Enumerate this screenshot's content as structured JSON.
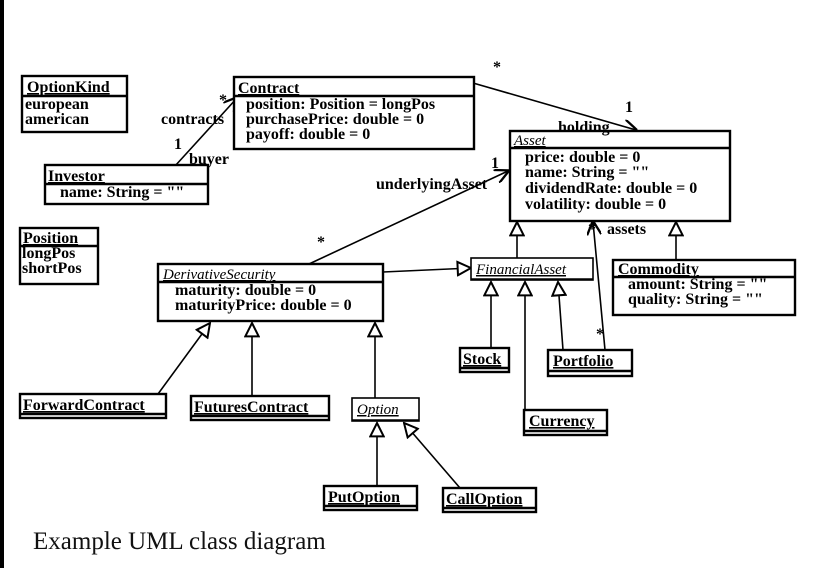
{
  "classes": {
    "option_kind": {
      "name": "OptionKind",
      "attrs": [
        "european",
        "american"
      ]
    },
    "contract": {
      "name": "Contract",
      "attrs": [
        "position: Position = longPos",
        "purchasePrice: double = 0",
        "payoff: double = 0"
      ]
    },
    "investor": {
      "name": "Investor",
      "attrs": [
        "name: String = \"\""
      ]
    },
    "asset": {
      "name": "Asset",
      "attrs": [
        "price: double = 0",
        "name: String = \"\"",
        "dividendRate: double = 0",
        "volatility: double = 0"
      ]
    },
    "position": {
      "name": "Position",
      "attrs": [
        "longPos",
        "shortPos"
      ]
    },
    "derivative_security": {
      "name": "DerivativeSecurity",
      "attrs": [
        "maturity: double = 0",
        "maturityPrice: double = 0"
      ]
    },
    "financial_asset": {
      "name": "FinancialAsset"
    },
    "commodity": {
      "name": "Commodity",
      "attrs": [
        "amount: String = \"\"",
        "quality: String = \"\""
      ]
    },
    "stock": {
      "name": "Stock"
    },
    "portfolio": {
      "name": "Portfolio"
    },
    "forward_contract": {
      "name": "ForwardContract"
    },
    "futures_contract": {
      "name": "FuturesContract"
    },
    "option": {
      "name": "Option"
    },
    "currency": {
      "name": "Currency"
    },
    "put_option": {
      "name": "PutOption"
    },
    "call_option": {
      "name": "CallOption"
    }
  },
  "labels": {
    "contracts": "contracts",
    "buyer": "buyer",
    "holding": "holding",
    "underlying_asset": "underlyingAsset",
    "assets": "assets",
    "star": "*",
    "one": "1"
  },
  "caption": "Example UML class diagram"
}
